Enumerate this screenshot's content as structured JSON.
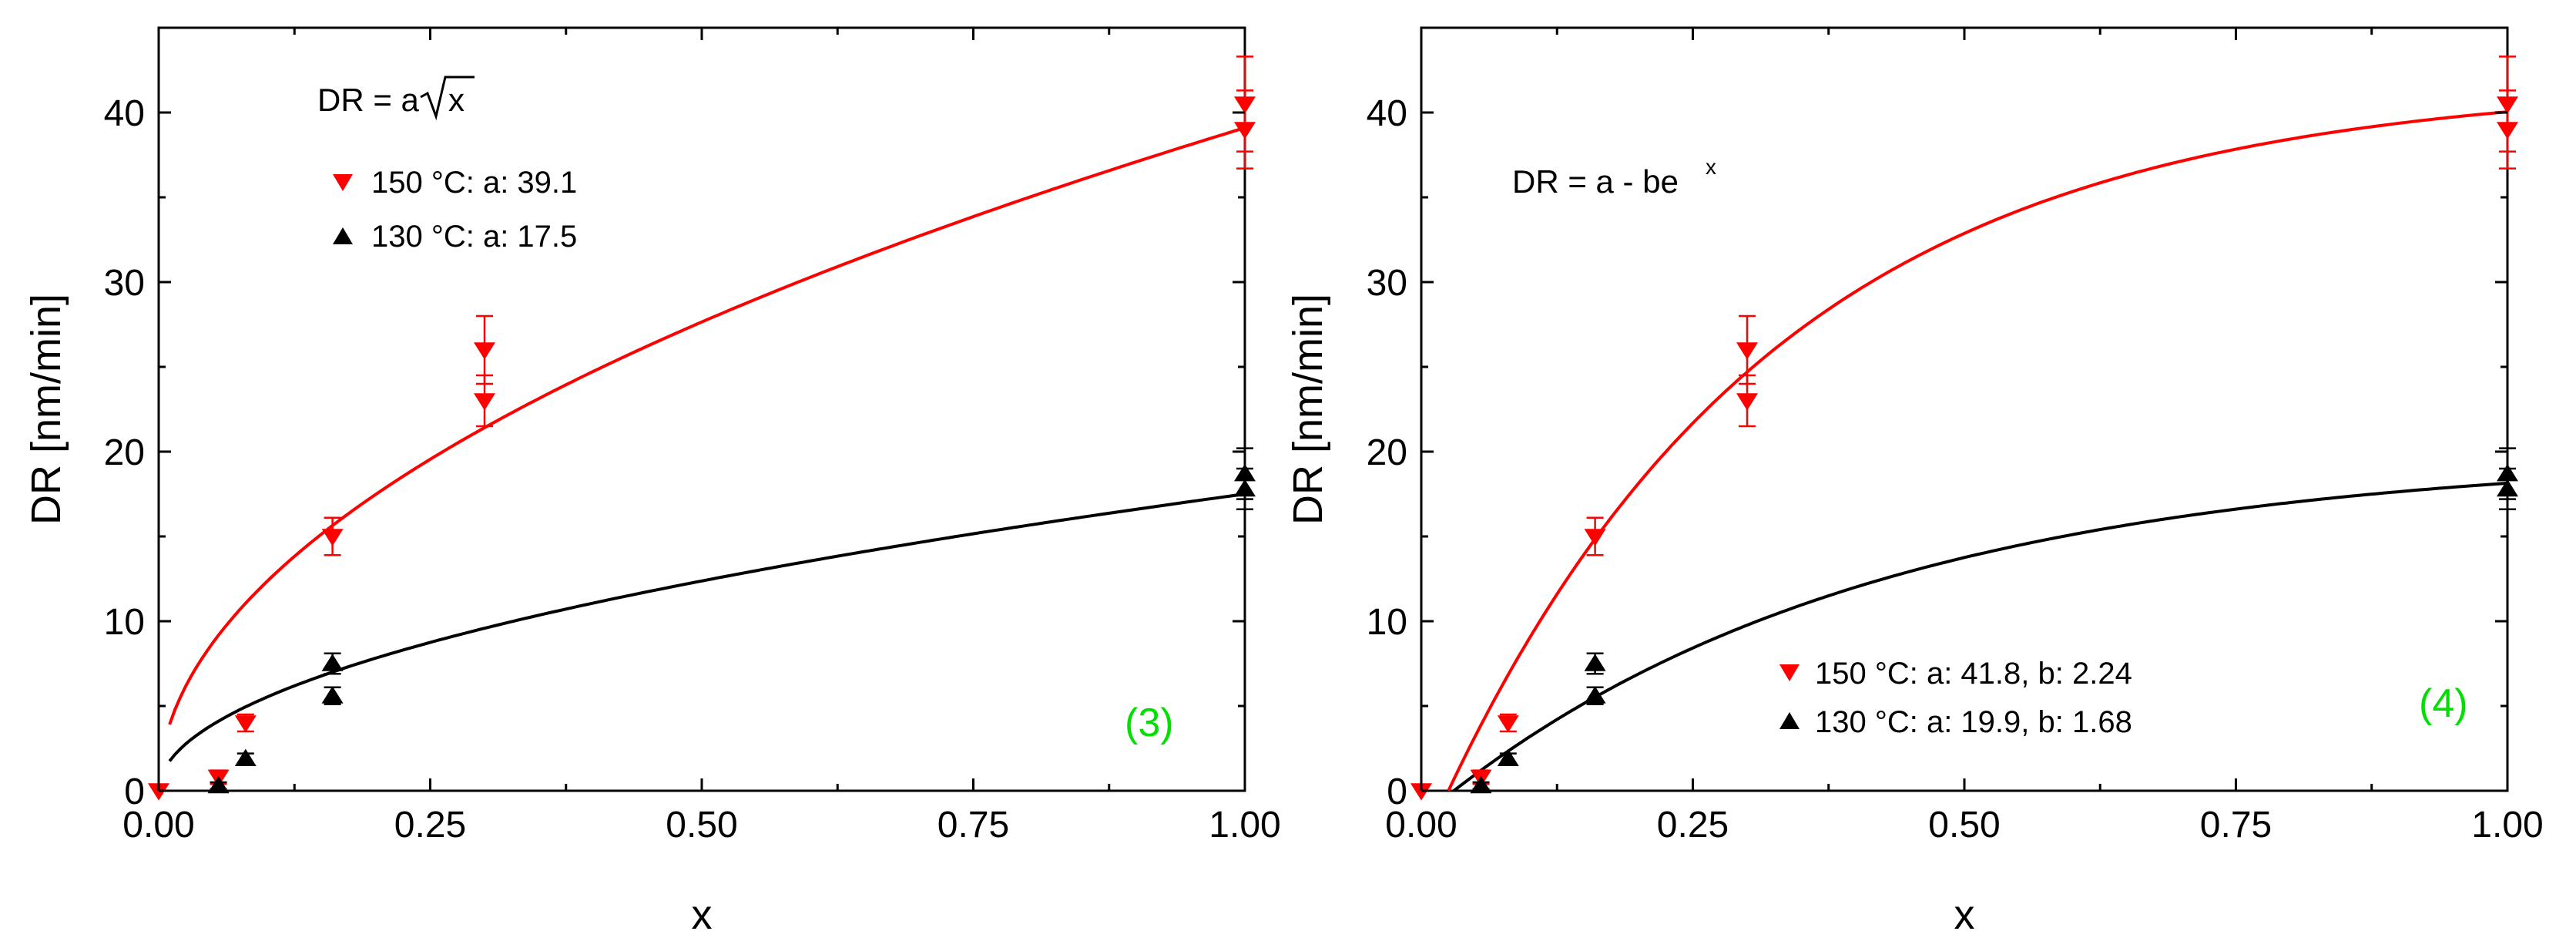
{
  "chart_data": [
    {
      "type": "scatter",
      "panel_label": "(3)",
      "formula": {
        "prefix": "DR = a",
        "radicand": "x"
      },
      "xlabel": "x",
      "ylabel": "DR [nm/min]",
      "xlim": [
        0.0,
        1.0
      ],
      "ylim": [
        0,
        45
      ],
      "xticks": [
        "0.00",
        "0.25",
        "0.50",
        "0.75",
        "1.00"
      ],
      "xtick_values": [
        0.0,
        0.25,
        0.5,
        0.75,
        1.0
      ],
      "yticks": [
        "0",
        "10",
        "20",
        "30",
        "40"
      ],
      "ytick_values": [
        0,
        10,
        20,
        30,
        40
      ],
      "legend_position": "top-left",
      "fit": {
        "model": "sqrt",
        "x_start": 0.01
      },
      "series": [
        {
          "name": "150 °C: a: 39.1",
          "color": "#ff0000",
          "marker": "down-triangle",
          "fit_params": {
            "a": 39.1
          },
          "points": [
            {
              "x": 0.0,
              "y": 0.0,
              "err": 0
            },
            {
              "x": 0.055,
              "y": 0.8,
              "err": 0.4
            },
            {
              "x": 0.08,
              "y": 4.0,
              "err": 0.5
            },
            {
              "x": 0.16,
              "y": 15.0,
              "err": 1.1
            },
            {
              "x": 0.3,
              "y": 23.0,
              "err": 1.5
            },
            {
              "x": 0.3,
              "y": 26.0,
              "err": 2.0
            },
            {
              "x": 1.0,
              "y": 39.0,
              "err": 2.3
            },
            {
              "x": 1.0,
              "y": 40.5,
              "err": 2.8
            }
          ]
        },
        {
          "name": "130 °C: a: 17.5",
          "color": "#000000",
          "marker": "up-triangle",
          "fit_params": {
            "a": 17.5
          },
          "points": [
            {
              "x": 0.055,
              "y": 0.3,
              "err": 0.2
            },
            {
              "x": 0.08,
              "y": 1.9,
              "err": 0.3
            },
            {
              "x": 0.16,
              "y": 5.6,
              "err": 0.5
            },
            {
              "x": 0.16,
              "y": 7.5,
              "err": 0.6
            },
            {
              "x": 1.0,
              "y": 17.8,
              "err": 1.2
            },
            {
              "x": 1.0,
              "y": 18.7,
              "err": 1.5
            }
          ]
        }
      ]
    },
    {
      "type": "scatter",
      "panel_label": "(4)",
      "formula": {
        "base": "DR = a - be",
        "superscript": "x"
      },
      "xlabel": "x",
      "ylabel": "DR [nm/min]",
      "xlim": [
        0.0,
        1.0
      ],
      "ylim": [
        0,
        45
      ],
      "xticks": [
        "0.00",
        "0.25",
        "0.50",
        "0.75",
        "1.00"
      ],
      "xtick_values": [
        0.0,
        0.25,
        0.5,
        0.75,
        1.0
      ],
      "yticks": [
        "0",
        "10",
        "20",
        "30",
        "40"
      ],
      "ytick_values": [
        0,
        10,
        20,
        30,
        40
      ],
      "legend_position": "bottom-right",
      "fit": {
        "model": "exp_saturation"
      },
      "series": [
        {
          "name": "150 °C: a: 41.8, b: 2.24",
          "color": "#ff0000",
          "marker": "down-triangle",
          "fit_params": {
            "a": 41.8,
            "b": 2.24
          },
          "curve": {
            "amplitude": 41.8,
            "rate": 3.25,
            "x0": 0.025
          },
          "points": [
            {
              "x": 0.0,
              "y": 0.0,
              "err": 0
            },
            {
              "x": 0.055,
              "y": 0.8,
              "err": 0.4
            },
            {
              "x": 0.08,
              "y": 4.0,
              "err": 0.5
            },
            {
              "x": 0.16,
              "y": 15.0,
              "err": 1.1
            },
            {
              "x": 0.3,
              "y": 23.0,
              "err": 1.5
            },
            {
              "x": 0.3,
              "y": 26.0,
              "err": 2.0
            },
            {
              "x": 1.0,
              "y": 39.0,
              "err": 2.3
            },
            {
              "x": 1.0,
              "y": 40.5,
              "err": 2.8
            }
          ]
        },
        {
          "name": "130 °C: a: 19.9, b: 1.68",
          "color": "#000000",
          "marker": "up-triangle",
          "fit_params": {
            "a": 19.9,
            "b": 1.68
          },
          "curve": {
            "amplitude": 19.9,
            "rate": 2.5,
            "x0": 0.03
          },
          "points": [
            {
              "x": 0.055,
              "y": 0.3,
              "err": 0.2
            },
            {
              "x": 0.08,
              "y": 1.9,
              "err": 0.3
            },
            {
              "x": 0.16,
              "y": 5.6,
              "err": 0.5
            },
            {
              "x": 0.16,
              "y": 7.5,
              "err": 0.6
            },
            {
              "x": 1.0,
              "y": 17.8,
              "err": 1.2
            },
            {
              "x": 1.0,
              "y": 18.7,
              "err": 1.5
            }
          ]
        }
      ]
    }
  ],
  "colors": {
    "panel_tag": "#00e000",
    "axis": "#000000"
  }
}
